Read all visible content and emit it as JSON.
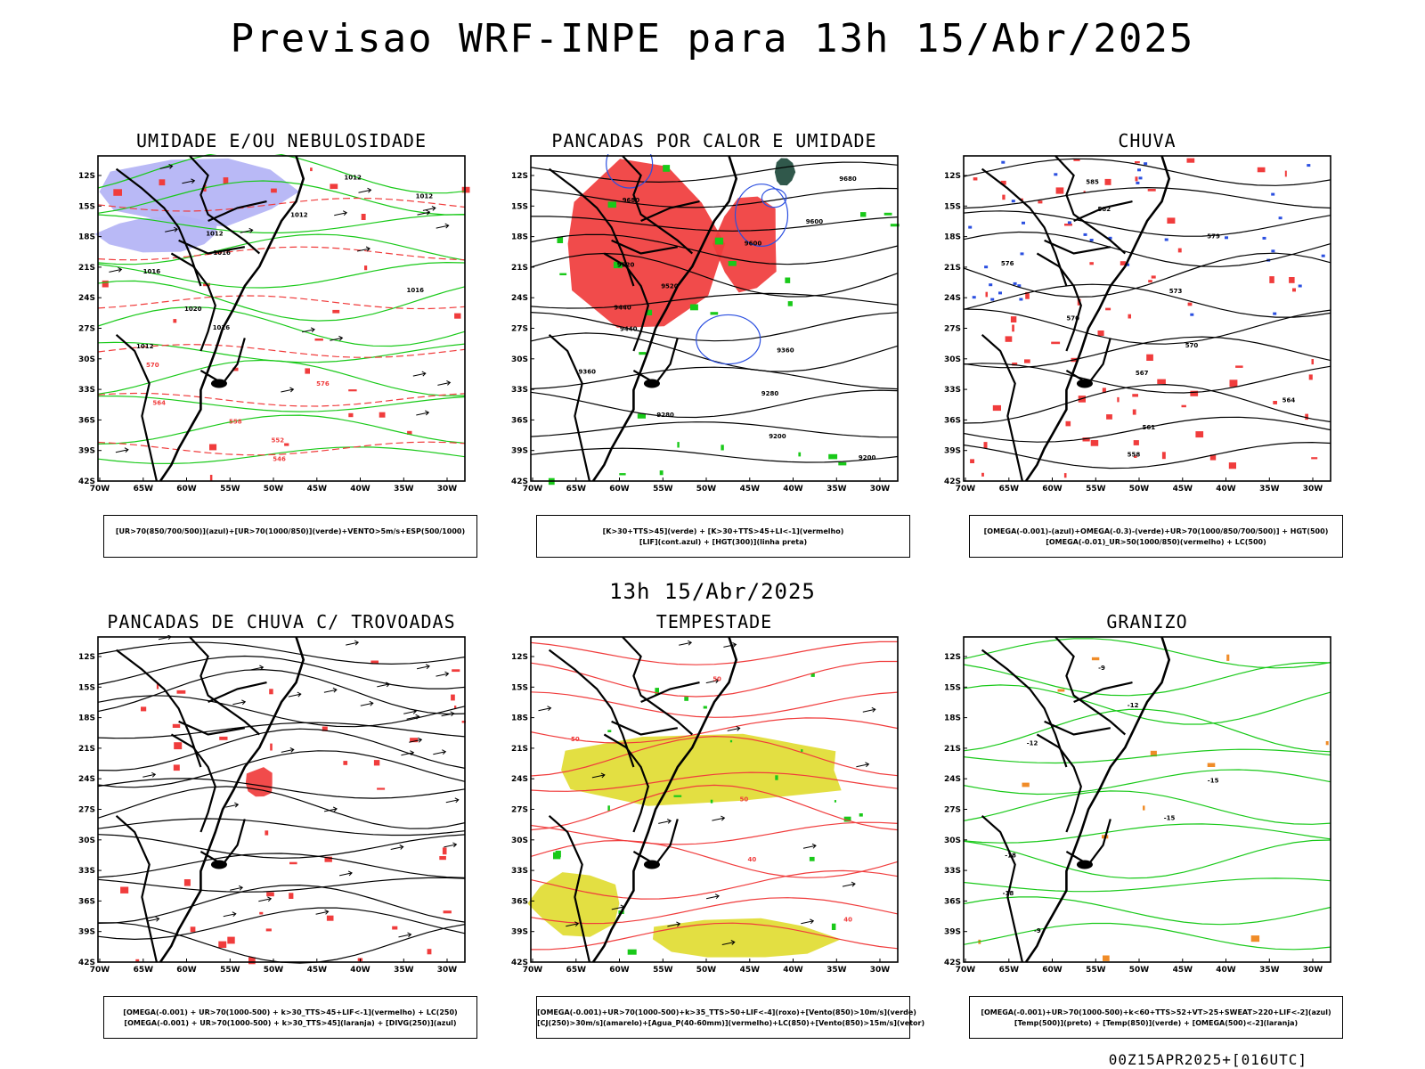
{
  "title": "Previsao WRF-INPE  para 13h 15/Abr/2025",
  "subtitle": "13h 15/Abr/2025",
  "footer": "00Z15APR2025+[016UTC]",
  "lat_labels": [
    "12S",
    "15S",
    "18S",
    "21S",
    "24S",
    "27S",
    "30S",
    "33S",
    "36S",
    "39S",
    "42S"
  ],
  "lon_labels": [
    "70W",
    "65W",
    "60W",
    "55W",
    "50W",
    "45W",
    "40W",
    "35W",
    "30W"
  ],
  "colors": {
    "blue": "#2b4fe0",
    "lightblue": "#b3b3f5",
    "green": "#19c919",
    "red": "#f03c3c",
    "yellow": "#e1dc32",
    "darkgreen": "#1e4a3c",
    "orange": "#f08c28"
  },
  "panels": [
    {
      "title": "UMIDADE E/OU NEBULOSIDADE",
      "legend": [
        "[UR>70(850/700/500)](azul)+[UR>70(1000/850)](verde)+VENTO>5m/s+ESP(500/1000)"
      ],
      "contour_labels": [
        "1012",
        "1012",
        "1012",
        "1012",
        "1016",
        "1016",
        "1016",
        "1020",
        "1016",
        "1012",
        "570",
        "576",
        "564",
        "558",
        "552",
        "546"
      ]
    },
    {
      "title": "PANCADAS POR CALOR E UMIDADE",
      "legend": [
        "[K>30+TTS>45](verde) + [K>30+TTS>45+LI<-1](vermelho)",
        "[LIF](cont.azul) + [HGT(300)](linha preta)"
      ],
      "contour_labels": [
        "9680",
        "9680",
        "9600",
        "9600",
        "9520",
        "9520",
        "9440",
        "9440",
        "9360",
        "9360",
        "9280",
        "9280",
        "9200",
        "9200"
      ]
    },
    {
      "title": "CHUVA",
      "legend": [
        "[OMEGA(-0.001)-(azul)+OMEGA(-0.3)-(verde)+UR>70(1000/850/700/500)] + HGT(500)",
        "[OMEGA(-0.01)_UR>50(1000/850)(vermelho) + LC(500)"
      ],
      "contour_labels": [
        "585",
        "582",
        "579",
        "576",
        "573",
        "570",
        "570",
        "567",
        "564",
        "561",
        "558"
      ]
    },
    {
      "title": "PANCADAS DE CHUVA C/ TROVOADAS",
      "legend": [
        "[OMEGA(-0.001) + UR>70(1000-500) + k>30_TTS>45+LIF<-1](vermelho) + LC(250)",
        "[OMEGA(-0.001) + UR>70(1000-500) + k>30_TTS>45](laranja) + [DIVG(250)](azul)"
      ],
      "contour_labels": []
    },
    {
      "title": "TEMPESTADE",
      "legend": [
        "[OMEGA(-0.001)+UR>70(1000-500)+k>35_TTS>50+LIF<-4](roxo)+[Vento(850)>10m/s](verde)",
        "[CJ(250)>30m/s](amarelo)+[Agua_P(40-60mm)](vermelho)+LC(850)+[Vento(850)>15m/s](vetor)"
      ],
      "contour_labels": [
        "50",
        "50",
        "50",
        "40",
        "40"
      ]
    },
    {
      "title": "GRANIZO",
      "legend": [
        "[OMEGA(-0.001)+UR>70(1000-500)+k<60+TTS>52+VT>25+SWEAT>220+LIF<-2](azul)",
        "[Temp(500)](preto) + [Temp(850)](verde) + [OMEGA(500)<-2](laranja)"
      ],
      "contour_labels": [
        "-9",
        "-12",
        "-12",
        "-15",
        "-15",
        "-18",
        "-18",
        "-9"
      ]
    }
  ]
}
